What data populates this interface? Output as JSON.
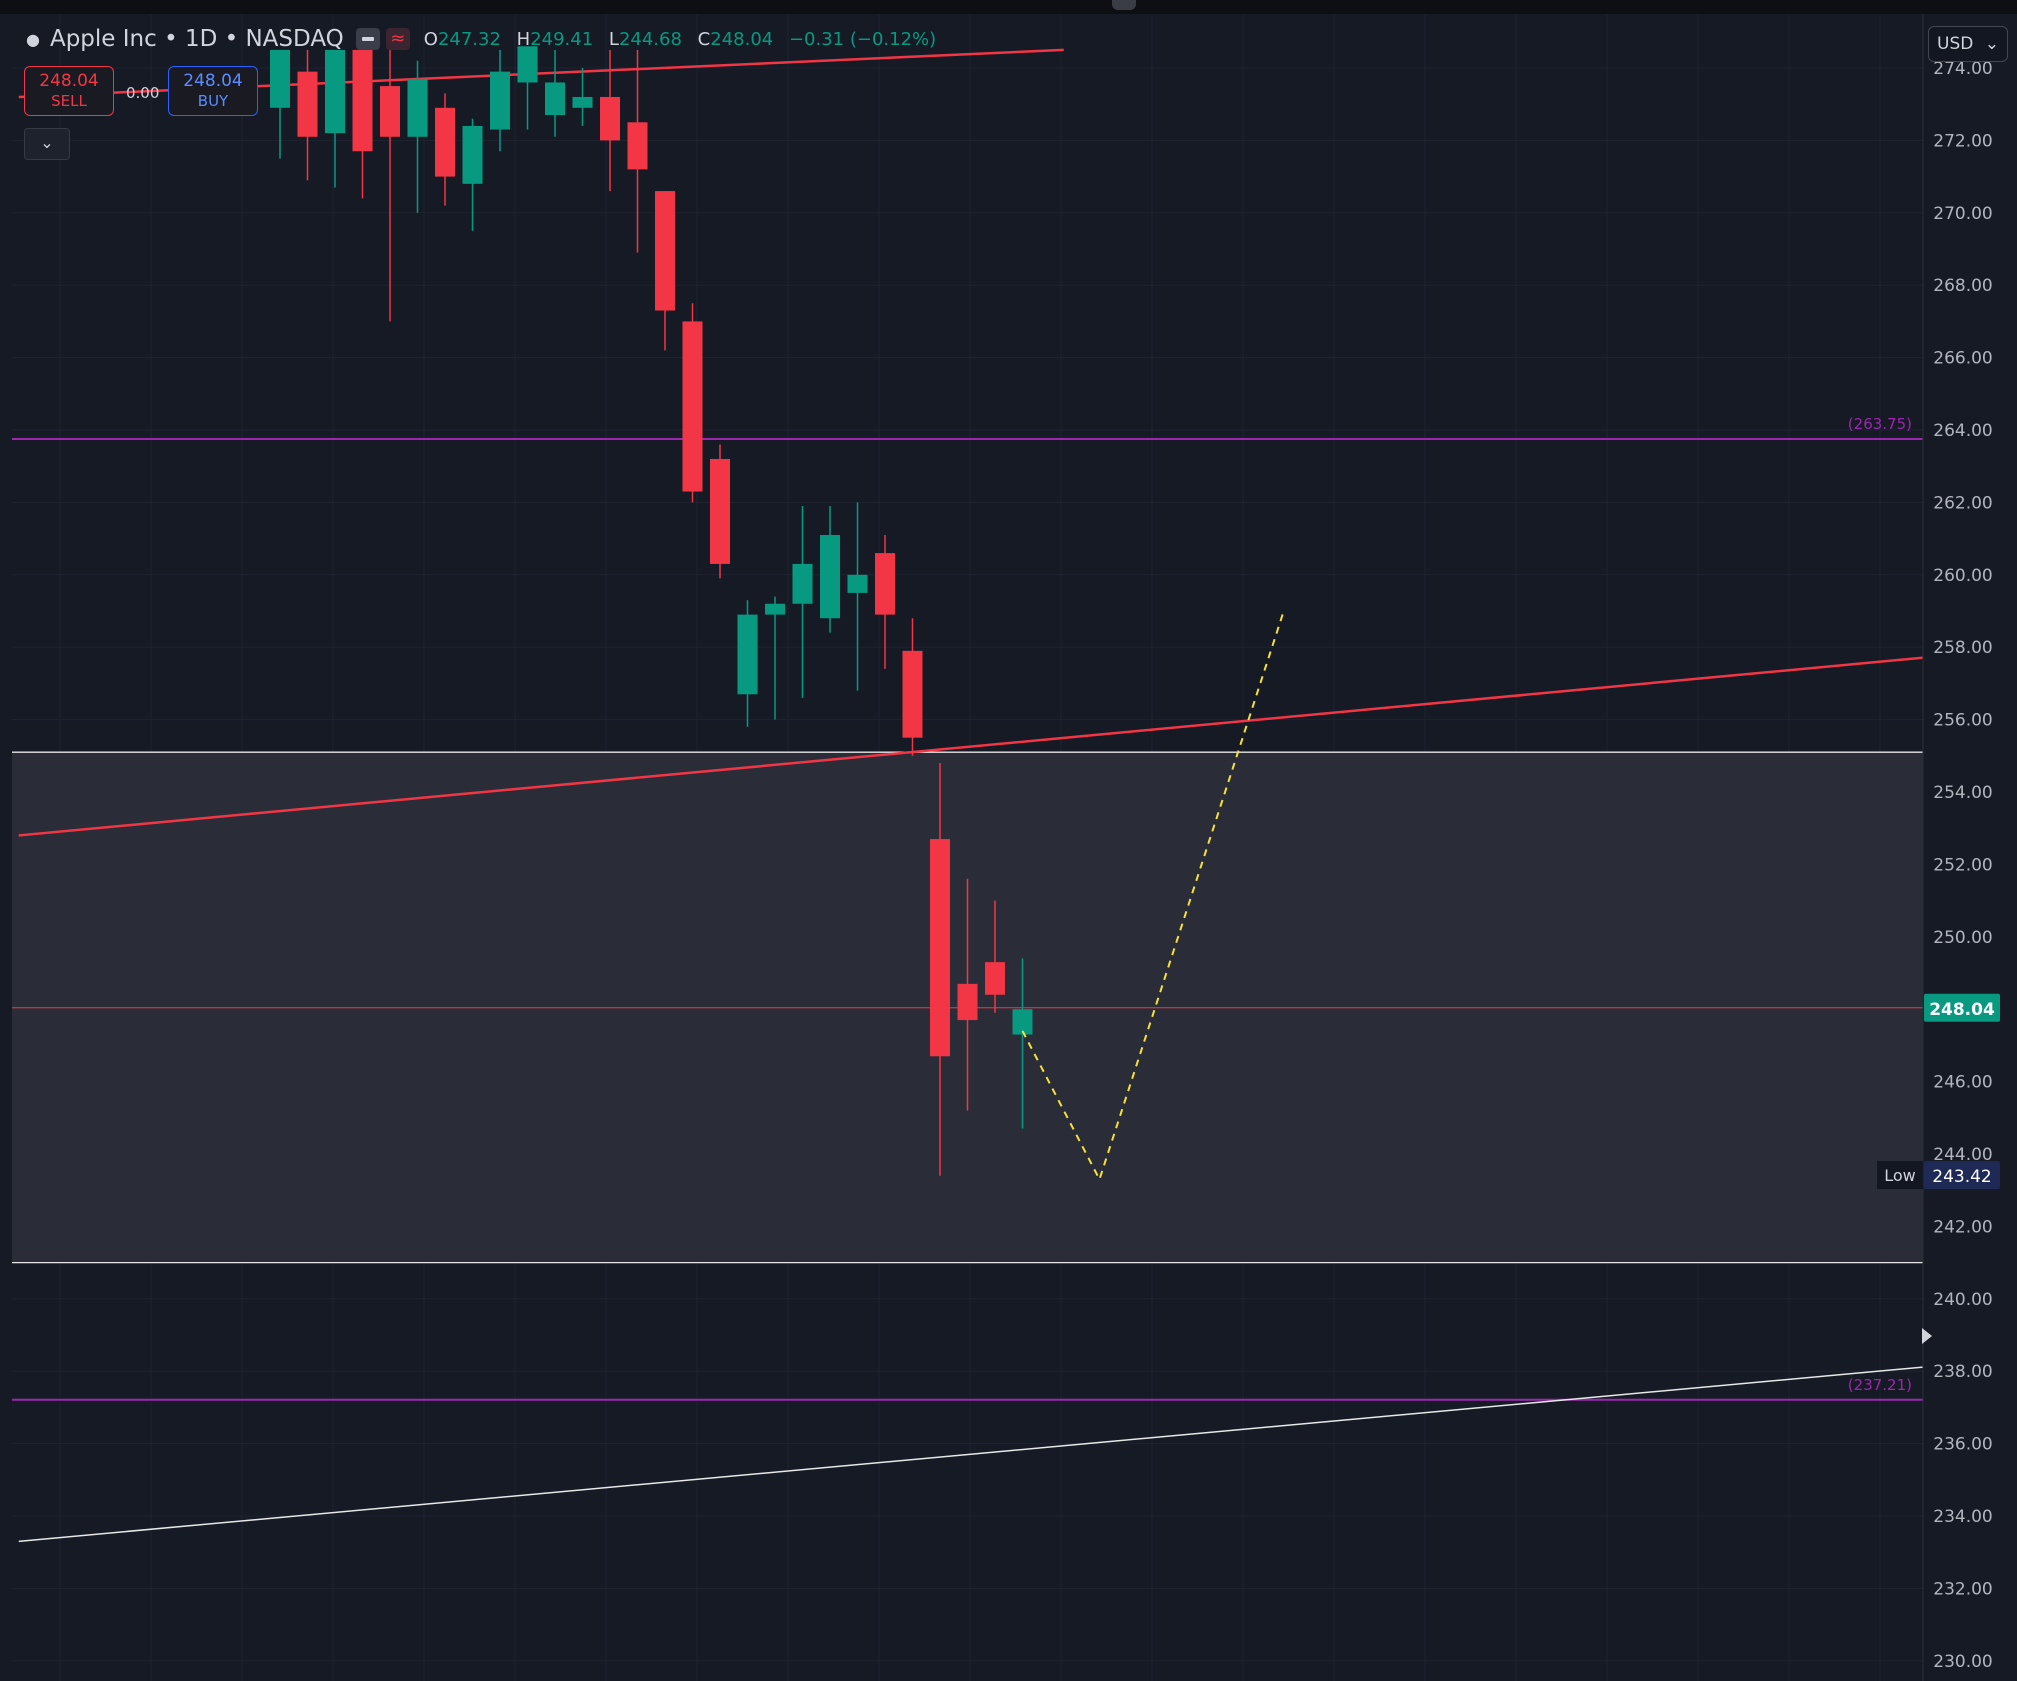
{
  "symbol": {
    "name": "Apple Inc",
    "interval": "1D",
    "exchange": "NASDAQ",
    "title": "Apple Inc • 1D • NASDAQ"
  },
  "ohlc": {
    "o_label": "O",
    "o": "247.32",
    "h_label": "H",
    "h": "249.41",
    "l_label": "L",
    "l": "244.68",
    "c_label": "C",
    "c": "248.04",
    "change": "−0.31 (−0.12%)"
  },
  "trade": {
    "sell_price": "248.04",
    "sell_label": "SELL",
    "spread": "0.00",
    "buy_price": "248.04",
    "buy_label": "BUY"
  },
  "currency": {
    "label": "USD",
    "caret": "⌄"
  },
  "colors": {
    "background": "#161a25",
    "up": "#089981",
    "down": "#f23645",
    "purple": "#9c27b0",
    "zone": "#2a2d38",
    "projection": "#f5e13c"
  },
  "chart_data": {
    "type": "candlestick",
    "y_axis": {
      "min": 229.5,
      "max": 274.5,
      "ticks": [
        274,
        272,
        270,
        268,
        266,
        264,
        262,
        260,
        258,
        256,
        254,
        252,
        250,
        248,
        246,
        244,
        242,
        240,
        238,
        236,
        234,
        232,
        230
      ]
    },
    "candles": [
      {
        "o": 272.9,
        "h": 274.5,
        "l": 271.5,
        "c": 274.5
      },
      {
        "o": 273.9,
        "h": 274.5,
        "l": 270.9,
        "c": 272.1
      },
      {
        "o": 272.2,
        "h": 274.3,
        "l": 270.7,
        "c": 274.5
      },
      {
        "o": 274.5,
        "h": 274.5,
        "l": 270.4,
        "c": 271.7
      },
      {
        "o": 273.5,
        "h": 274.5,
        "l": 267.0,
        "c": 272.1
      },
      {
        "o": 272.1,
        "h": 274.2,
        "l": 270.0,
        "c": 273.7
      },
      {
        "o": 272.9,
        "h": 273.3,
        "l": 270.2,
        "c": 271.0
      },
      {
        "o": 270.8,
        "h": 272.6,
        "l": 269.5,
        "c": 272.4
      },
      {
        "o": 272.3,
        "h": 274.5,
        "l": 271.7,
        "c": 273.9
      },
      {
        "o": 273.6,
        "h": 274.5,
        "l": 272.3,
        "c": 274.6
      },
      {
        "o": 272.7,
        "h": 274.5,
        "l": 272.1,
        "c": 273.6
      },
      {
        "o": 272.9,
        "h": 274.0,
        "l": 272.4,
        "c": 273.2
      },
      {
        "o": 273.2,
        "h": 274.5,
        "l": 270.6,
        "c": 272.0
      },
      {
        "o": 272.5,
        "h": 274.5,
        "l": 268.9,
        "c": 271.2
      },
      {
        "o": 270.6,
        "h": 270.6,
        "l": 266.2,
        "c": 267.3
      },
      {
        "o": 267.0,
        "h": 267.5,
        "l": 262.0,
        "c": 262.3
      },
      {
        "o": 263.2,
        "h": 263.6,
        "l": 259.9,
        "c": 260.3
      },
      {
        "o": 256.7,
        "h": 259.3,
        "l": 255.8,
        "c": 258.9
      },
      {
        "o": 258.9,
        "h": 259.4,
        "l": 256.0,
        "c": 259.2
      },
      {
        "o": 259.2,
        "h": 261.9,
        "l": 256.6,
        "c": 260.3
      },
      {
        "o": 258.8,
        "h": 261.9,
        "l": 258.4,
        "c": 261.1
      },
      {
        "o": 259.5,
        "h": 262.0,
        "l": 256.8,
        "c": 260.0
      },
      {
        "o": 260.6,
        "h": 261.1,
        "l": 257.4,
        "c": 258.9
      },
      {
        "o": 257.9,
        "h": 258.8,
        "l": 255.0,
        "c": 255.5
      },
      {
        "o": 252.7,
        "h": 254.8,
        "l": 243.4,
        "c": 246.7
      },
      {
        "o": 248.7,
        "h": 251.6,
        "l": 245.2,
        "c": 247.7
      },
      {
        "o": 249.3,
        "h": 251.0,
        "l": 247.9,
        "c": 248.4
      },
      {
        "o": 247.3,
        "h": 249.4,
        "l": 244.7,
        "c": 248.0
      }
    ],
    "current_price": {
      "value": 248.04,
      "label": "248.04"
    },
    "low_marker": {
      "value": 243.42,
      "label": "243.42",
      "tag": "Low"
    },
    "horizontal_levels": [
      {
        "value": 263.75,
        "label": "(263.75)",
        "style": "purple"
      },
      {
        "value": 237.21,
        "label": "(237.21)",
        "style": "purple"
      },
      {
        "value": 255.1,
        "style": "white"
      },
      {
        "value": 241.0,
        "style": "white"
      }
    ],
    "zone": {
      "from": 241.0,
      "to": 255.1
    },
    "trendlines": [
      {
        "style": "red",
        "points": [
          {
            "bar": -9.5,
            "y": 273.2
          },
          {
            "bar": 28.5,
            "y": 274.5
          }
        ]
      },
      {
        "style": "red",
        "points": [
          {
            "bar": -9.5,
            "y": 252.8
          },
          {
            "bar": 61.0,
            "y": 257.8
          }
        ]
      },
      {
        "style": "white",
        "points": [
          {
            "bar": -9.5,
            "y": 233.3
          },
          {
            "bar": 61.0,
            "y": 238.2
          }
        ]
      }
    ],
    "projection": {
      "style": "yellow-dashed",
      "points": [
        {
          "bar": 27.0,
          "y": 247.4
        },
        {
          "bar": 29.8,
          "y": 243.3
        },
        {
          "bar": 36.5,
          "y": 259.0
        }
      ]
    }
  }
}
